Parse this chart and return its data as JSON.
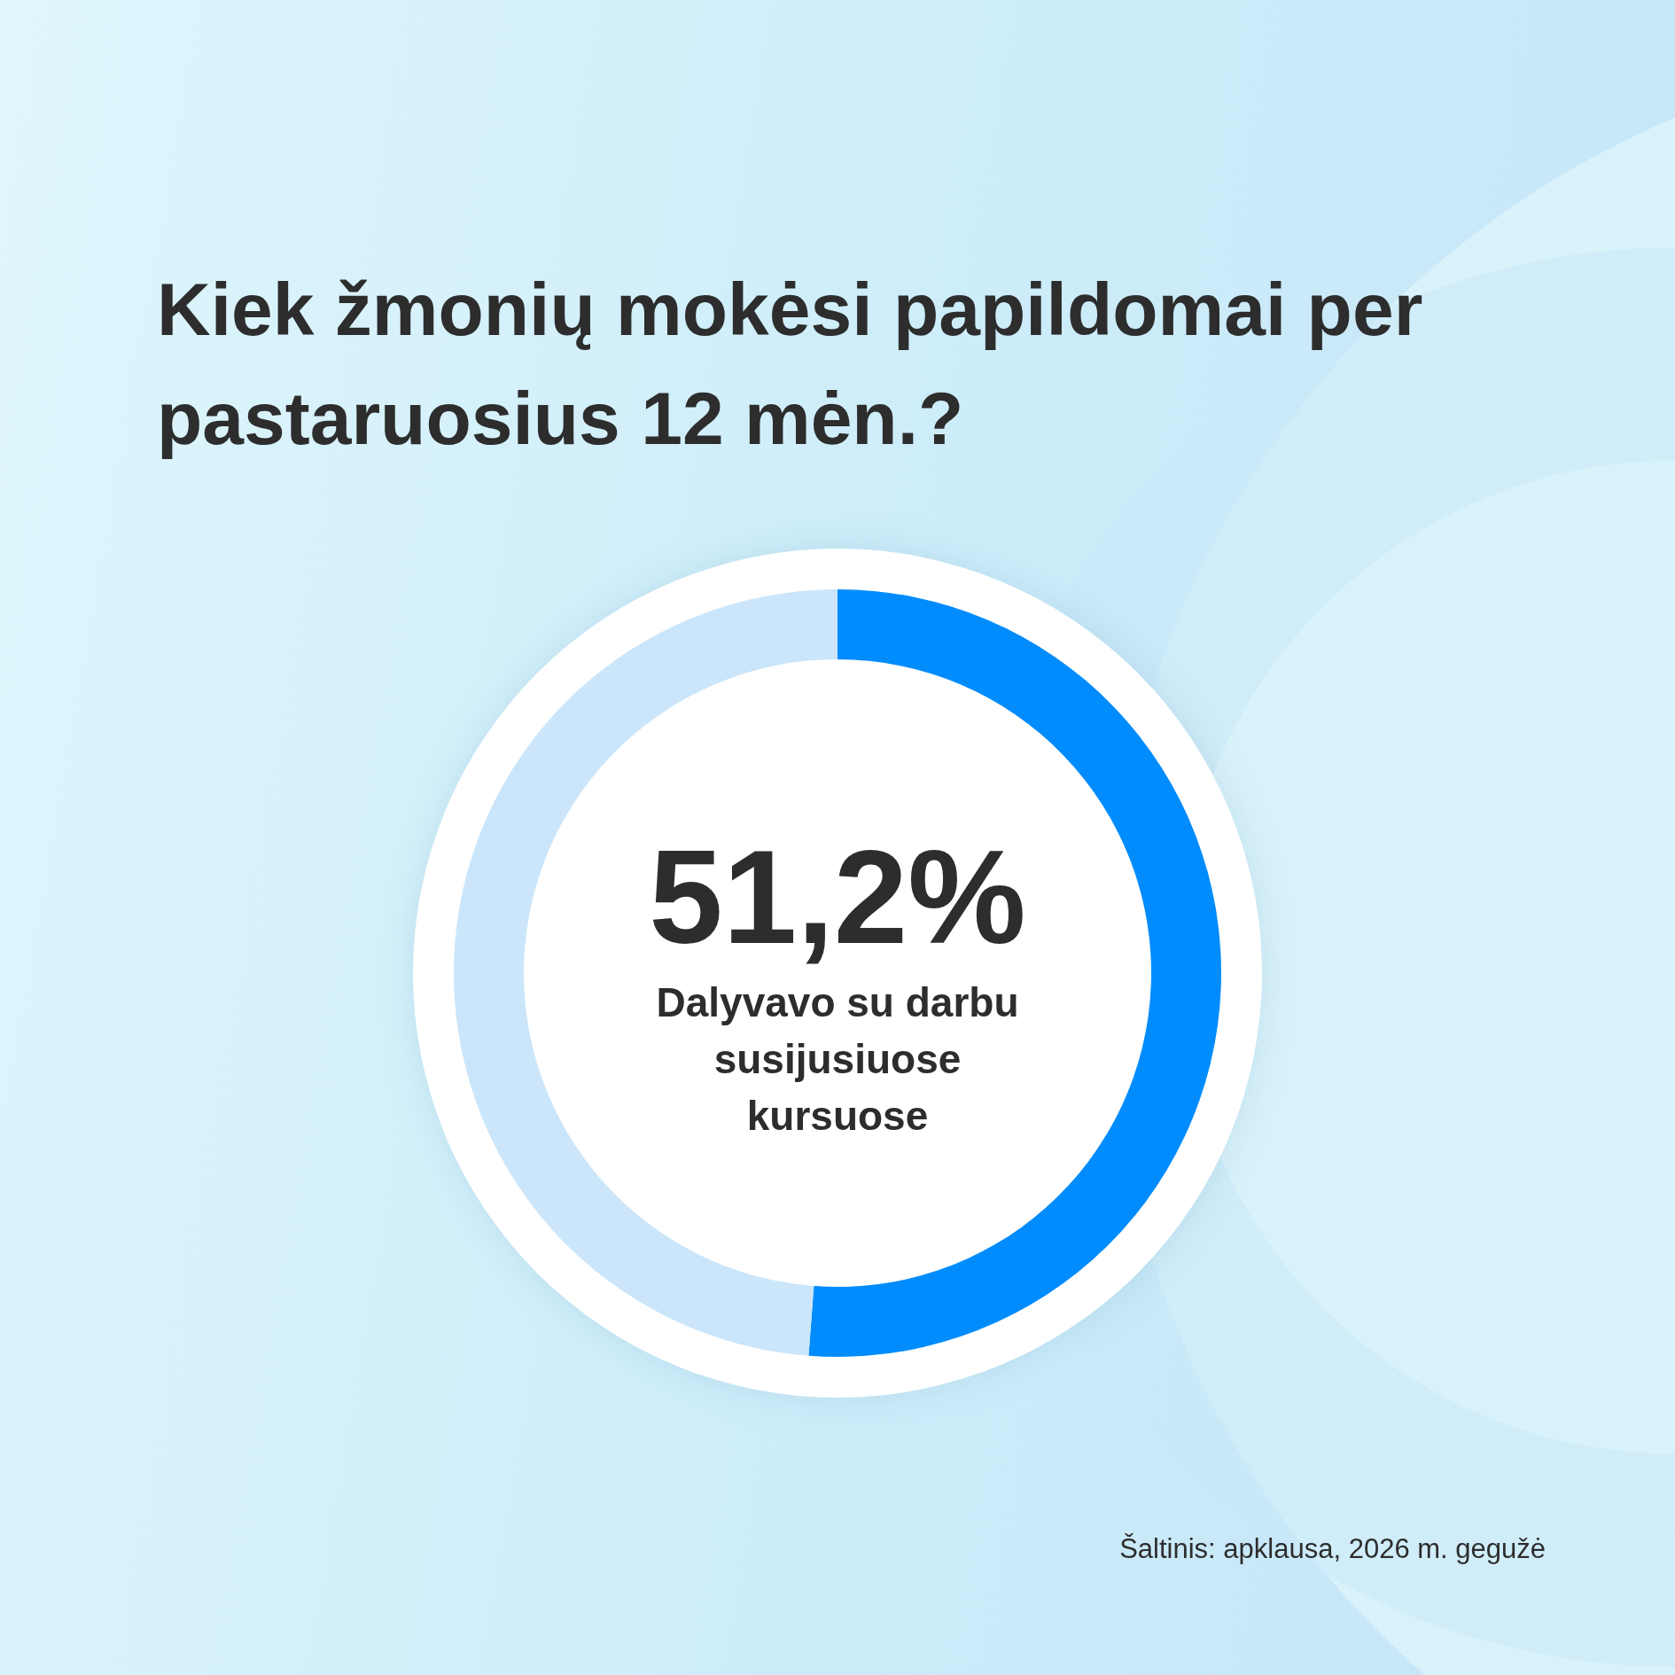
{
  "chart_data": {
    "type": "donut",
    "title": "Kiek žmonių mokėsi papildomai per pastaruosius 12 mėn.?",
    "categories": [
      "Dalyvavo su darbu susijusiuose kursuose",
      null
    ],
    "values": [
      51.2,
      48.8
    ],
    "colors": [
      "#008cfc",
      "#cbe6fa"
    ],
    "value_labels": [
      "51,2%",
      null
    ],
    "annotations": [
      "Šaltinis: apklausa, 2026 m. gegužė"
    ]
  }
}
